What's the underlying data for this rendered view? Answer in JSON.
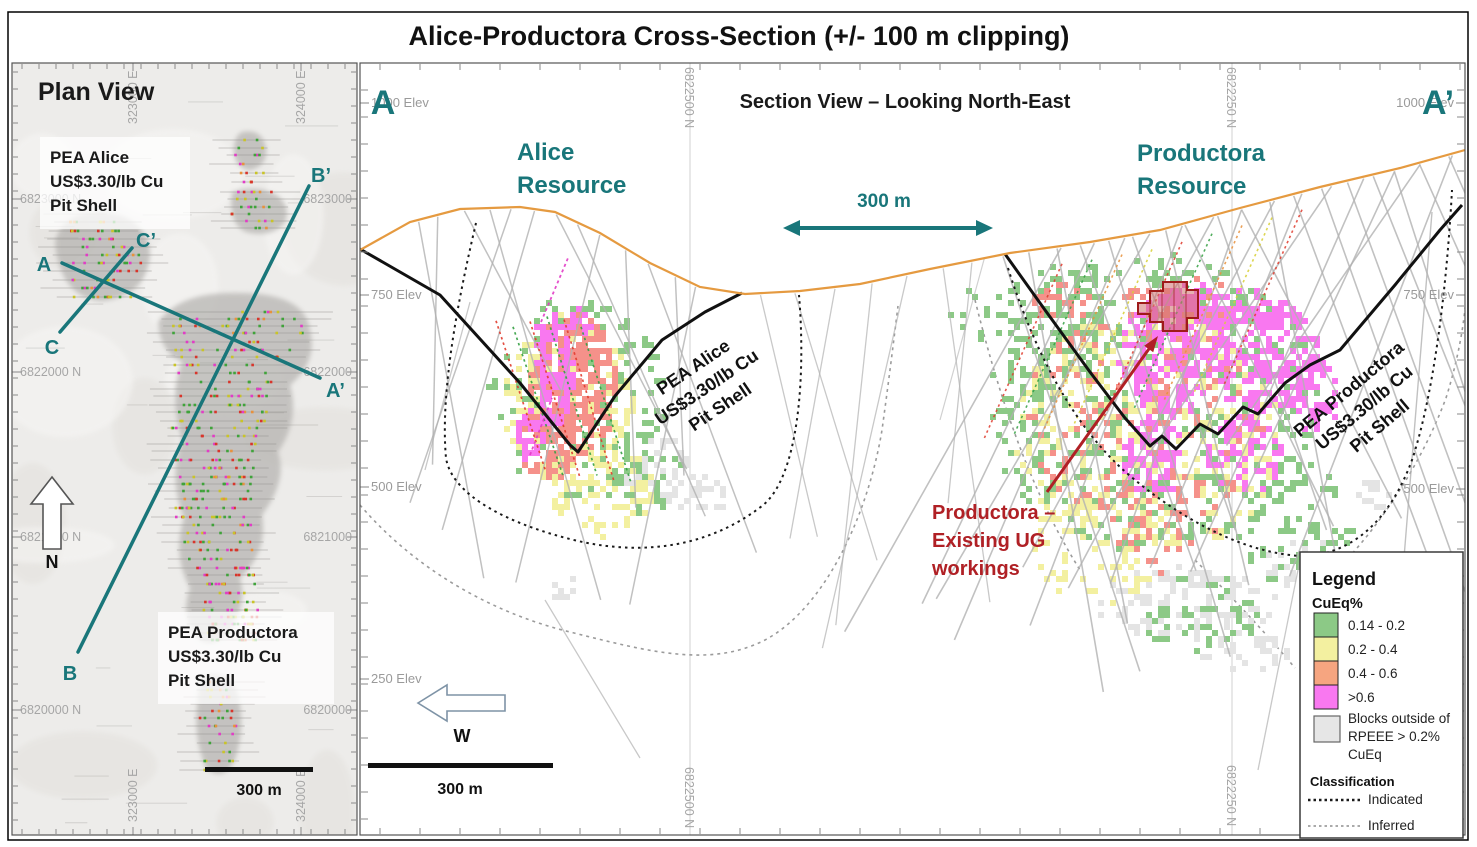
{
  "title": "Alice-Productora Cross-Section (+/- 100 m clipping)",
  "colors": {
    "teal": "#19767a",
    "dark_red": "#b02025",
    "topo_orange": "#e59a40",
    "block_salmon": "#f5918a",
    "block_gray": "#e4e4e4",
    "trace_gray": "#b2b2b2",
    "pit_outline": "#111111"
  },
  "plan": {
    "heading": "Plan View",
    "alice_pit_label": [
      "PEA Alice",
      "US$3.30/lb Cu",
      "Pit Shell"
    ],
    "productora_pit_label": [
      "PEA Productora",
      "US$3.30/lb Cu",
      "Pit Shell"
    ],
    "section_endpoints": {
      "a": "A",
      "a2": "A’",
      "b": "B",
      "b2": "B’",
      "c": "C",
      "c2": "C’"
    },
    "north_label": "N",
    "scale_label": "300 m",
    "grid": {
      "n_left": [
        "6823000 N",
        "6822000 N",
        "6821000 N",
        "6820000 N"
      ],
      "n_right": [
        "6823000",
        "6822000",
        "6821000",
        "6820000"
      ],
      "e": [
        "323000 E",
        "324000 E"
      ]
    }
  },
  "section": {
    "heading": "Section View – Looking North-East",
    "left_label": "A",
    "right_label": "A’",
    "alice_resource": [
      "Alice",
      "Resource"
    ],
    "productora_resource": [
      "Productora",
      "Resource"
    ],
    "distance_label": "300 m",
    "alice_pit_label": [
      "PEA Alice",
      "US$3.30/lb Cu",
      "Pit Shell"
    ],
    "productora_pit_label": [
      "PEA Productora",
      "US$3.30/lb Cu",
      "Pit Shell"
    ],
    "ug_annotation": [
      "Productora –",
      "Existing UG",
      "workings"
    ],
    "west_label": "W",
    "scale_label": "300 m",
    "elev_left": [
      "1000 Elev",
      "750 Elev",
      "500 Elev",
      "250 Elev"
    ],
    "elev_right": [
      "1000 Elev",
      "750 Elev",
      "500 Elev"
    ],
    "grid_n": [
      "6822500 N",
      "6822250 N"
    ]
  },
  "legend": {
    "title": "Legend",
    "subtitle": "CuEq%",
    "classes": [
      {
        "range": "0.14 - 0.2",
        "color": "#8cc986"
      },
      {
        "range": "0.2 - 0.4",
        "color": "#f3f0a0"
      },
      {
        "range": "0.4 - 0.6",
        "color": "#f6a580"
      },
      {
        "range": ">0.6",
        "color": "#f978f0"
      }
    ],
    "outside_lines": [
      "Blocks outside of",
      "RPEEE > 0.2%",
      "CuEq"
    ],
    "outside_color": "#e6e6e6",
    "classification_title": "Classification",
    "classification": [
      {
        "label": "Indicated",
        "color": "#1a1a1a"
      },
      {
        "label": "Inferred",
        "color": "#aaaaaa"
      }
    ]
  }
}
